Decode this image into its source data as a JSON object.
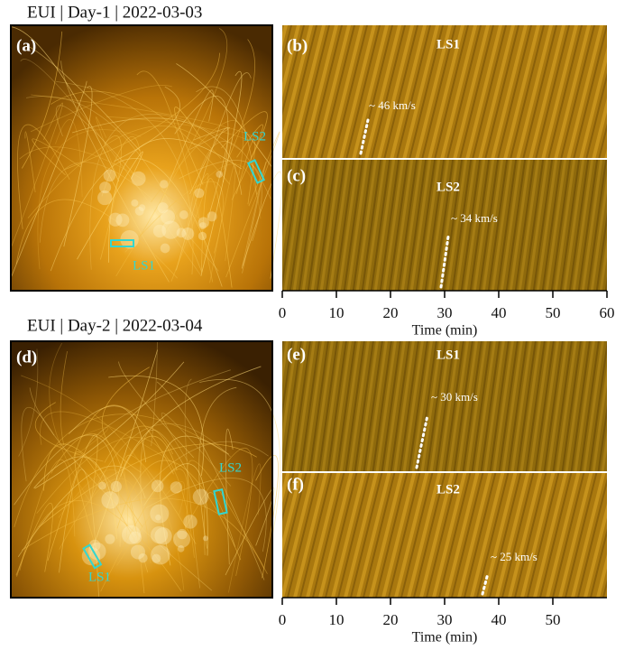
{
  "rows": [
    {
      "title": "EUI | Day-1 | 2022-03-03",
      "image_panel": {
        "label": "(a)",
        "regions": [
          "LS2",
          "LS1"
        ]
      },
      "time_panels": [
        {
          "label": "(b)",
          "region": "LS1",
          "speed": "~ 46 km/s"
        },
        {
          "label": "(c)",
          "region": "LS2",
          "speed": "~ 34 km/s"
        }
      ],
      "x_axis": {
        "label": "Time (min)",
        "xlim": [
          0,
          60
        ],
        "xticks": [
          0,
          10,
          20,
          30,
          40,
          50,
          60
        ]
      }
    },
    {
      "title": "EUI | Day-2 | 2022-03-04",
      "image_panel": {
        "label": "(d)",
        "regions": [
          "LS2",
          "LS1"
        ]
      },
      "time_panels": [
        {
          "label": "(e)",
          "region": "LS1",
          "speed": "~ 30 km/s"
        },
        {
          "label": "(f)",
          "region": "LS2",
          "speed": "~ 25 km/s"
        }
      ],
      "x_axis": {
        "label": "Time (min)",
        "xlim": [
          0,
          60
        ],
        "xticks": [
          0,
          10,
          20,
          30,
          40,
          50
        ]
      }
    }
  ]
}
